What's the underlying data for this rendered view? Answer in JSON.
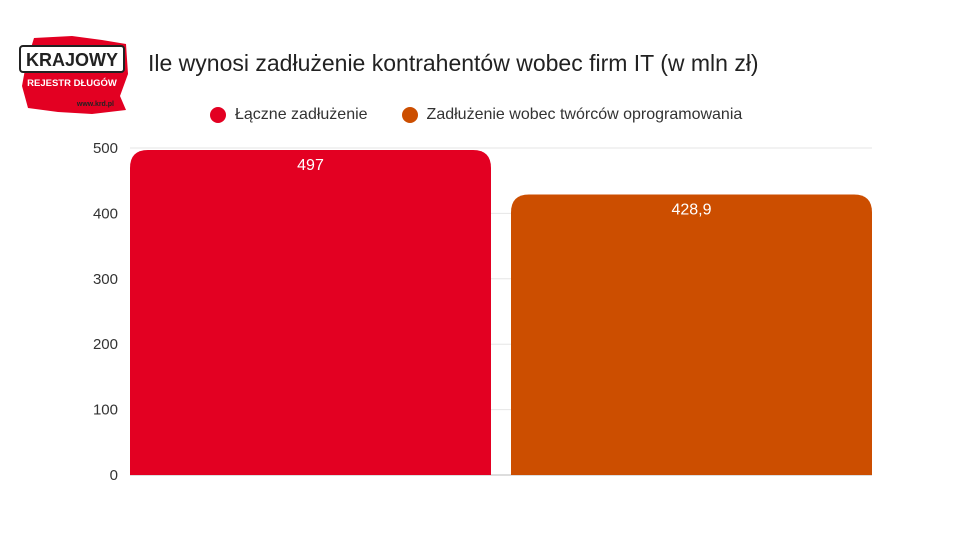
{
  "logo": {
    "line1": "KRAJOWY",
    "line2": "REJESTR DŁUGÓW",
    "url": "www.krd.pl"
  },
  "chart_data": {
    "type": "bar",
    "title": "Ile wynosi zadłużenie kontrahentów wobec firm IT (w mln zł)",
    "xlabel": "",
    "ylabel": "",
    "ylim": [
      0,
      500
    ],
    "yticks": [
      0,
      100,
      200,
      300,
      400,
      500
    ],
    "grid": true,
    "legend_position": "top",
    "series": [
      {
        "name": "Łączne zadłużenie",
        "value": 497,
        "label": "497",
        "color": "#e30022"
      },
      {
        "name": "Zadłużenie wobec twórców oprogramowania",
        "value": 428.9,
        "label": "428,9",
        "color": "#cc4e00"
      }
    ]
  }
}
